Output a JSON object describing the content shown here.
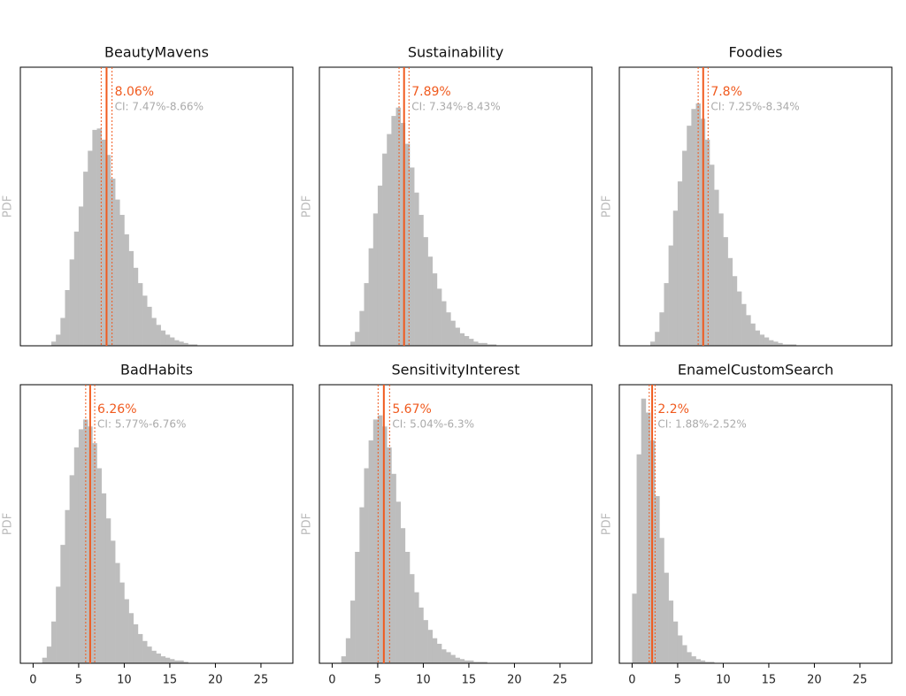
{
  "chart_data": [
    {
      "type": "histogram",
      "title": "BeautyMavens",
      "ylabel": "PDF",
      "color": "#bdbdbd",
      "xlim": [
        -1.4,
        28.5
      ],
      "ylim": [
        0,
        0.2
      ],
      "bins": [
        2,
        2.5,
        3,
        3.5,
        4,
        4.5,
        5,
        5.5,
        6,
        6.5,
        7,
        7.5,
        8,
        8.5,
        9,
        9.5,
        10,
        10.5,
        11,
        11.5,
        12,
        12.5,
        13,
        13.5,
        14,
        14.5,
        15,
        15.5,
        16,
        16.5,
        17,
        17.5,
        18
      ],
      "values": [
        0.003,
        0.008,
        0.02,
        0.04,
        0.062,
        0.082,
        0.1,
        0.125,
        0.14,
        0.155,
        0.156,
        0.148,
        0.137,
        0.12,
        0.105,
        0.094,
        0.08,
        0.068,
        0.056,
        0.045,
        0.036,
        0.028,
        0.02,
        0.015,
        0.011,
        0.008,
        0.006,
        0.004,
        0.003,
        0.002,
        0.001,
        0.001
      ],
      "mean": {
        "value": 8.06,
        "label": "8.06%"
      },
      "ci": {
        "low": 7.47,
        "high": 8.66,
        "label": "CI: 7.47%-8.66%"
      },
      "line_color": "#f05a1e"
    },
    {
      "type": "histogram",
      "title": "Sustainability",
      "ylabel": "PDF",
      "color": "#bdbdbd",
      "xlim": [
        -1.4,
        28.5
      ],
      "ylim": [
        0,
        0.2
      ],
      "bins": [
        2,
        2.5,
        3,
        3.5,
        4,
        4.5,
        5,
        5.5,
        6,
        6.5,
        7,
        7.5,
        8,
        8.5,
        9,
        9.5,
        10,
        10.5,
        11,
        11.5,
        12,
        12.5,
        13,
        13.5,
        14,
        14.5,
        15,
        15.5,
        16,
        16.5,
        17,
        17.5,
        18
      ],
      "values": [
        0.003,
        0.01,
        0.025,
        0.045,
        0.07,
        0.095,
        0.115,
        0.138,
        0.152,
        0.165,
        0.171,
        0.16,
        0.145,
        0.128,
        0.11,
        0.094,
        0.078,
        0.064,
        0.052,
        0.041,
        0.032,
        0.024,
        0.018,
        0.013,
        0.009,
        0.007,
        0.005,
        0.003,
        0.002,
        0.002,
        0.001,
        0.001
      ],
      "mean": {
        "value": 7.89,
        "label": "7.89%"
      },
      "ci": {
        "low": 7.34,
        "high": 8.43,
        "label": "CI: 7.34%-8.43%"
      },
      "line_color": "#f05a1e"
    },
    {
      "type": "histogram",
      "title": "Foodies",
      "ylabel": "PDF",
      "color": "#bdbdbd",
      "xlim": [
        -1.4,
        28.5
      ],
      "ylim": [
        0,
        0.2
      ],
      "bins": [
        2,
        2.5,
        3,
        3.5,
        4,
        4.5,
        5,
        5.5,
        6,
        6.5,
        7,
        7.5,
        8,
        8.5,
        9,
        9.5,
        10,
        10.5,
        11,
        11.5,
        12,
        12.5,
        13,
        13.5,
        14,
        14.5,
        15,
        15.5,
        16,
        16.5,
        17,
        17.5,
        18
      ],
      "values": [
        0.003,
        0.01,
        0.024,
        0.045,
        0.072,
        0.097,
        0.118,
        0.14,
        0.158,
        0.17,
        0.174,
        0.163,
        0.148,
        0.13,
        0.112,
        0.095,
        0.078,
        0.063,
        0.05,
        0.039,
        0.03,
        0.022,
        0.016,
        0.011,
        0.008,
        0.006,
        0.004,
        0.003,
        0.002,
        0.001,
        0.001,
        0.001
      ],
      "mean": {
        "value": 7.8,
        "label": "7.8%"
      },
      "ci": {
        "low": 7.25,
        "high": 8.34,
        "label": "CI: 7.25%-8.34%"
      },
      "line_color": "#f05a1e"
    },
    {
      "type": "histogram",
      "title": "BadHabits",
      "ylabel": "PDF",
      "color": "#bdbdbd",
      "xlim": [
        -1.4,
        28.5
      ],
      "ylim": [
        0,
        0.2
      ],
      "xticks": [
        0,
        5,
        10,
        15,
        20,
        25
      ],
      "bins": [
        1,
        1.5,
        2,
        2.5,
        3,
        3.5,
        4,
        4.5,
        5,
        5.5,
        6,
        6.5,
        7,
        7.5,
        8,
        8.5,
        9,
        9.5,
        10,
        10.5,
        11,
        11.5,
        12,
        12.5,
        13,
        13.5,
        14,
        14.5,
        15,
        15.5,
        16,
        16.5,
        17
      ],
      "values": [
        0.004,
        0.012,
        0.03,
        0.055,
        0.085,
        0.11,
        0.135,
        0.155,
        0.168,
        0.175,
        0.17,
        0.158,
        0.14,
        0.122,
        0.104,
        0.088,
        0.072,
        0.058,
        0.046,
        0.036,
        0.028,
        0.021,
        0.016,
        0.012,
        0.009,
        0.007,
        0.005,
        0.004,
        0.003,
        0.002,
        0.002,
        0.001
      ],
      "mean": {
        "value": 6.26,
        "label": "6.26%"
      },
      "ci": {
        "low": 5.77,
        "high": 6.76,
        "label": "CI: 5.77%-6.76%"
      },
      "line_color": "#f05a1e"
    },
    {
      "type": "histogram",
      "title": "SensitivityInterest",
      "ylabel": "PDF",
      "color": "#bdbdbd",
      "xlim": [
        -1.4,
        28.5
      ],
      "ylim": [
        0,
        0.2
      ],
      "xticks": [
        0,
        5,
        10,
        15,
        20,
        25
      ],
      "bins": [
        1,
        1.5,
        2,
        2.5,
        3,
        3.5,
        4,
        4.5,
        5,
        5.5,
        6,
        6.5,
        7,
        7.5,
        8,
        8.5,
        9,
        9.5,
        10,
        10.5,
        11,
        11.5,
        12,
        12.5,
        13,
        13.5,
        14,
        14.5,
        15,
        15.5,
        16,
        16.5,
        17
      ],
      "values": [
        0.005,
        0.018,
        0.045,
        0.08,
        0.112,
        0.14,
        0.16,
        0.175,
        0.178,
        0.17,
        0.155,
        0.136,
        0.116,
        0.097,
        0.08,
        0.064,
        0.051,
        0.04,
        0.031,
        0.024,
        0.018,
        0.014,
        0.01,
        0.008,
        0.006,
        0.004,
        0.003,
        0.002,
        0.002,
        0.001,
        0.001,
        0.001
      ],
      "mean": {
        "value": 5.67,
        "label": "5.67%"
      },
      "ci": {
        "low": 5.04,
        "high": 6.3,
        "label": "CI: 5.04%-6.3%"
      },
      "line_color": "#f05a1e"
    },
    {
      "type": "histogram",
      "title": "EnamelCustomSearch",
      "ylabel": "PDF",
      "color": "#bdbdbd",
      "xlim": [
        -1.4,
        28.5
      ],
      "ylim": [
        0,
        0.2
      ],
      "xticks": [
        0,
        5,
        10,
        15,
        20,
        25
      ],
      "bins": [
        0,
        0.5,
        1,
        1.5,
        2,
        2.5,
        3,
        3.5,
        4,
        4.5,
        5,
        5.5,
        6,
        6.5,
        7,
        7.5,
        8,
        8.5,
        9
      ],
      "values": [
        0.05,
        0.15,
        0.19,
        0.18,
        0.16,
        0.12,
        0.09,
        0.065,
        0.045,
        0.03,
        0.02,
        0.013,
        0.008,
        0.005,
        0.003,
        0.002,
        0.001,
        0.001
      ],
      "mean": {
        "value": 2.2,
        "label": "2.2%"
      },
      "ci": {
        "low": 1.88,
        "high": 2.52,
        "label": "CI: 1.88%-2.52%"
      },
      "line_color": "#f05a1e"
    }
  ]
}
